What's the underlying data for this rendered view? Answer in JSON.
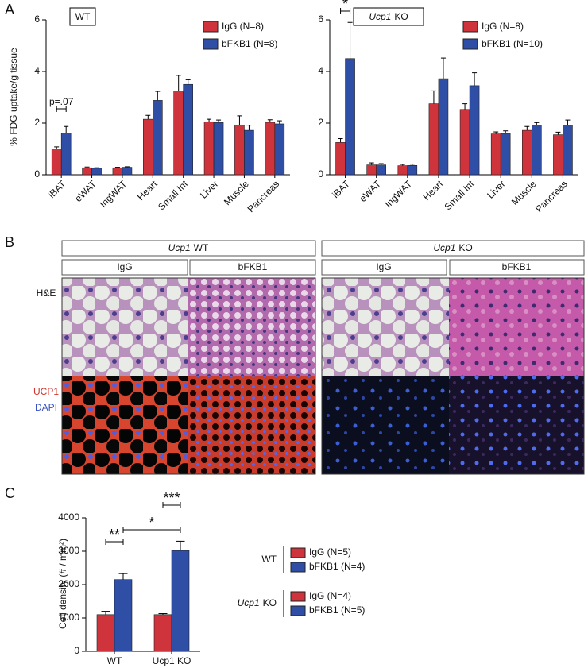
{
  "panel_labels": [
    "A",
    "B",
    "C"
  ],
  "chart_data": [
    {
      "type": "bar",
      "box_label": "WT",
      "y_label": "% FDG uptake/g tissue",
      "categories": [
        "iBAT",
        "eWAT",
        "IngWAT",
        "Heart",
        "Small Int",
        "Liver",
        "Muscle",
        "Pancreas"
      ],
      "series": [
        {
          "name": "IgG (N=8)",
          "color": "#cf343c",
          "values": [
            1.0,
            0.27,
            0.27,
            2.15,
            3.25,
            2.05,
            1.93,
            2.03
          ],
          "errors": [
            0.08,
            0.03,
            0.02,
            0.15,
            0.6,
            0.1,
            0.35,
            0.1
          ]
        },
        {
          "name": "bFKB1 (N=8)",
          "color": "#2f4ea6",
          "values": [
            1.62,
            0.25,
            0.29,
            2.88,
            3.5,
            2.02,
            1.72,
            1.97
          ],
          "errors": [
            0.25,
            0.02,
            0.02,
            0.35,
            0.18,
            0.1,
            0.2,
            0.12
          ]
        }
      ],
      "ylim": [
        0,
        6
      ],
      "yticks": [
        0,
        2,
        4,
        6
      ],
      "annotations": [
        "p=.07"
      ]
    },
    {
      "type": "bar",
      "box_label_italic": "Ucp1",
      "box_label": "KO",
      "categories": [
        "iBAT",
        "eWAT",
        "IngWAT",
        "Heart",
        "Small Int",
        "Liver",
        "Muscle",
        "Pancreas"
      ],
      "series": [
        {
          "name": "IgG (N=8)",
          "color": "#cf343c",
          "values": [
            1.25,
            0.38,
            0.35,
            2.75,
            2.53,
            1.58,
            1.72,
            1.55
          ],
          "errors": [
            0.15,
            0.08,
            0.05,
            0.5,
            0.22,
            0.08,
            0.15,
            0.1
          ]
        },
        {
          "name": "bFKB1 (N=10)",
          "color": "#2f4ea6",
          "values": [
            4.5,
            0.38,
            0.36,
            3.72,
            3.45,
            1.6,
            1.92,
            1.92
          ],
          "errors": [
            1.4,
            0.05,
            0.05,
            0.8,
            0.5,
            0.1,
            0.1,
            0.2
          ]
        }
      ],
      "ylim": [
        0,
        6
      ],
      "yticks": [
        0,
        2,
        4,
        6
      ],
      "annotations": [
        "*"
      ]
    },
    {
      "type": "bar",
      "y_label": "Cell density (# / mm²)",
      "categories": [
        "WT",
        "Ucp1 KO"
      ],
      "series": [
        {
          "color": "#cf343c",
          "values": [
            1100,
            1100
          ],
          "errors": [
            100,
            30
          ]
        },
        {
          "color": "#2f4ea6",
          "values": [
            2150,
            3020
          ],
          "errors": [
            180,
            280
          ]
        }
      ],
      "ylim": [
        0,
        4000
      ],
      "yticks": [
        0,
        1000,
        2000,
        3000,
        4000
      ],
      "annotations": [
        "**",
        "***",
        "*"
      ],
      "legend_groups": [
        {
          "label": "WT",
          "entries": [
            "IgG (N=5)",
            "bFKB1 (N=4)"
          ]
        },
        {
          "label_italic": "Ucp1",
          "label": "KO",
          "entries": [
            "IgG (N=4)",
            "bFKB1 (N=5)"
          ]
        }
      ]
    }
  ],
  "histology": {
    "groups": [
      {
        "title_italic": "Ucp1",
        "title": "WT",
        "columns": [
          "IgG",
          "bFKB1"
        ]
      },
      {
        "title_italic": "Ucp1",
        "title": "KO",
        "columns": [
          "IgG",
          "bFKB1"
        ]
      }
    ],
    "row_labels": [
      "H&E",
      "UCP1",
      "DAPI"
    ]
  }
}
